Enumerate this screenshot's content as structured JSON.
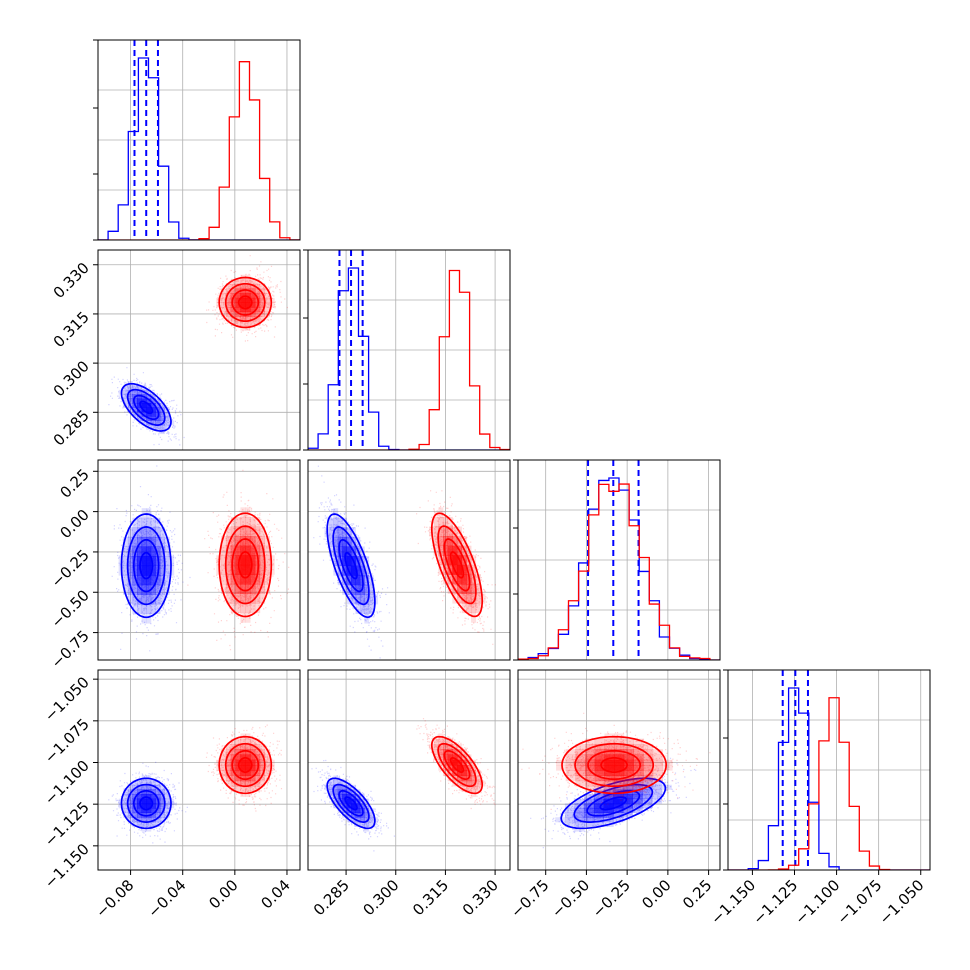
{
  "chart_data": {
    "type": "corner",
    "parameters": [
      {
        "range": [
          -0.105,
          0.05
        ],
        "ticks": [
          -0.08,
          -0.04,
          0.0,
          0.04
        ],
        "tick_labels": [
          "−0.08",
          "−0.04",
          "0.00",
          "0.04"
        ]
      },
      {
        "range": [
          0.2735,
          0.3345
        ],
        "ticks": [
          0.285,
          0.3,
          0.315,
          0.33
        ],
        "tick_labels": [
          "0.285",
          "0.300",
          "0.315",
          "0.330"
        ]
      },
      {
        "range": [
          -0.92,
          0.32
        ],
        "ticks": [
          -0.75,
          -0.5,
          -0.25,
          0.0,
          0.25
        ],
        "tick_labels": [
          "−0.75",
          "−0.50",
          "−0.25",
          "0.00",
          "0.25"
        ]
      },
      {
        "range": [
          -1.1645,
          -1.0445
        ],
        "ticks": [
          -1.15,
          -1.125,
          -1.1,
          -1.075,
          -1.05
        ],
        "tick_labels": [
          "−1.150",
          "−1.125",
          "−1.100",
          "−1.075",
          "−1.050"
        ]
      }
    ],
    "series": [
      {
        "color": "#0000ff",
        "mean": [
          -0.068,
          0.2865,
          -0.335,
          -1.1245
        ],
        "sd": [
          0.0095,
          0.0036,
          0.16,
          0.0075
        ],
        "corr": {
          "0-1": -0.6,
          "0-2": 0.0,
          "0-3": 0.0,
          "1-2": -0.7,
          "1-3": -0.7,
          "2-3": 0.6
        },
        "quantiles": [
          [
            -0.077,
            -0.068,
            -0.059
          ],
          [
            0.283,
            0.2865,
            0.29
          ],
          [
            -0.49,
            -0.335,
            -0.18
          ],
          [
            -1.132,
            -1.1245,
            -1.117
          ]
        ]
      },
      {
        "color": "#ff0000",
        "mean": [
          0.008,
          0.3185,
          -0.33,
          -1.1015
        ],
        "sd": [
          0.01,
          0.0038,
          0.16,
          0.0085
        ],
        "corr": {
          "0-1": 0.0,
          "0-2": 0.0,
          "0-3": 0.0,
          "1-2": -0.7,
          "1-3": -0.7,
          "2-3": 0.0
        },
        "quantiles": null
      }
    ],
    "plot_types": [
      "histogram",
      "2d-histogram",
      "contour",
      "scatter"
    ],
    "grid": true,
    "xlabel": "",
    "ylabel": ""
  }
}
